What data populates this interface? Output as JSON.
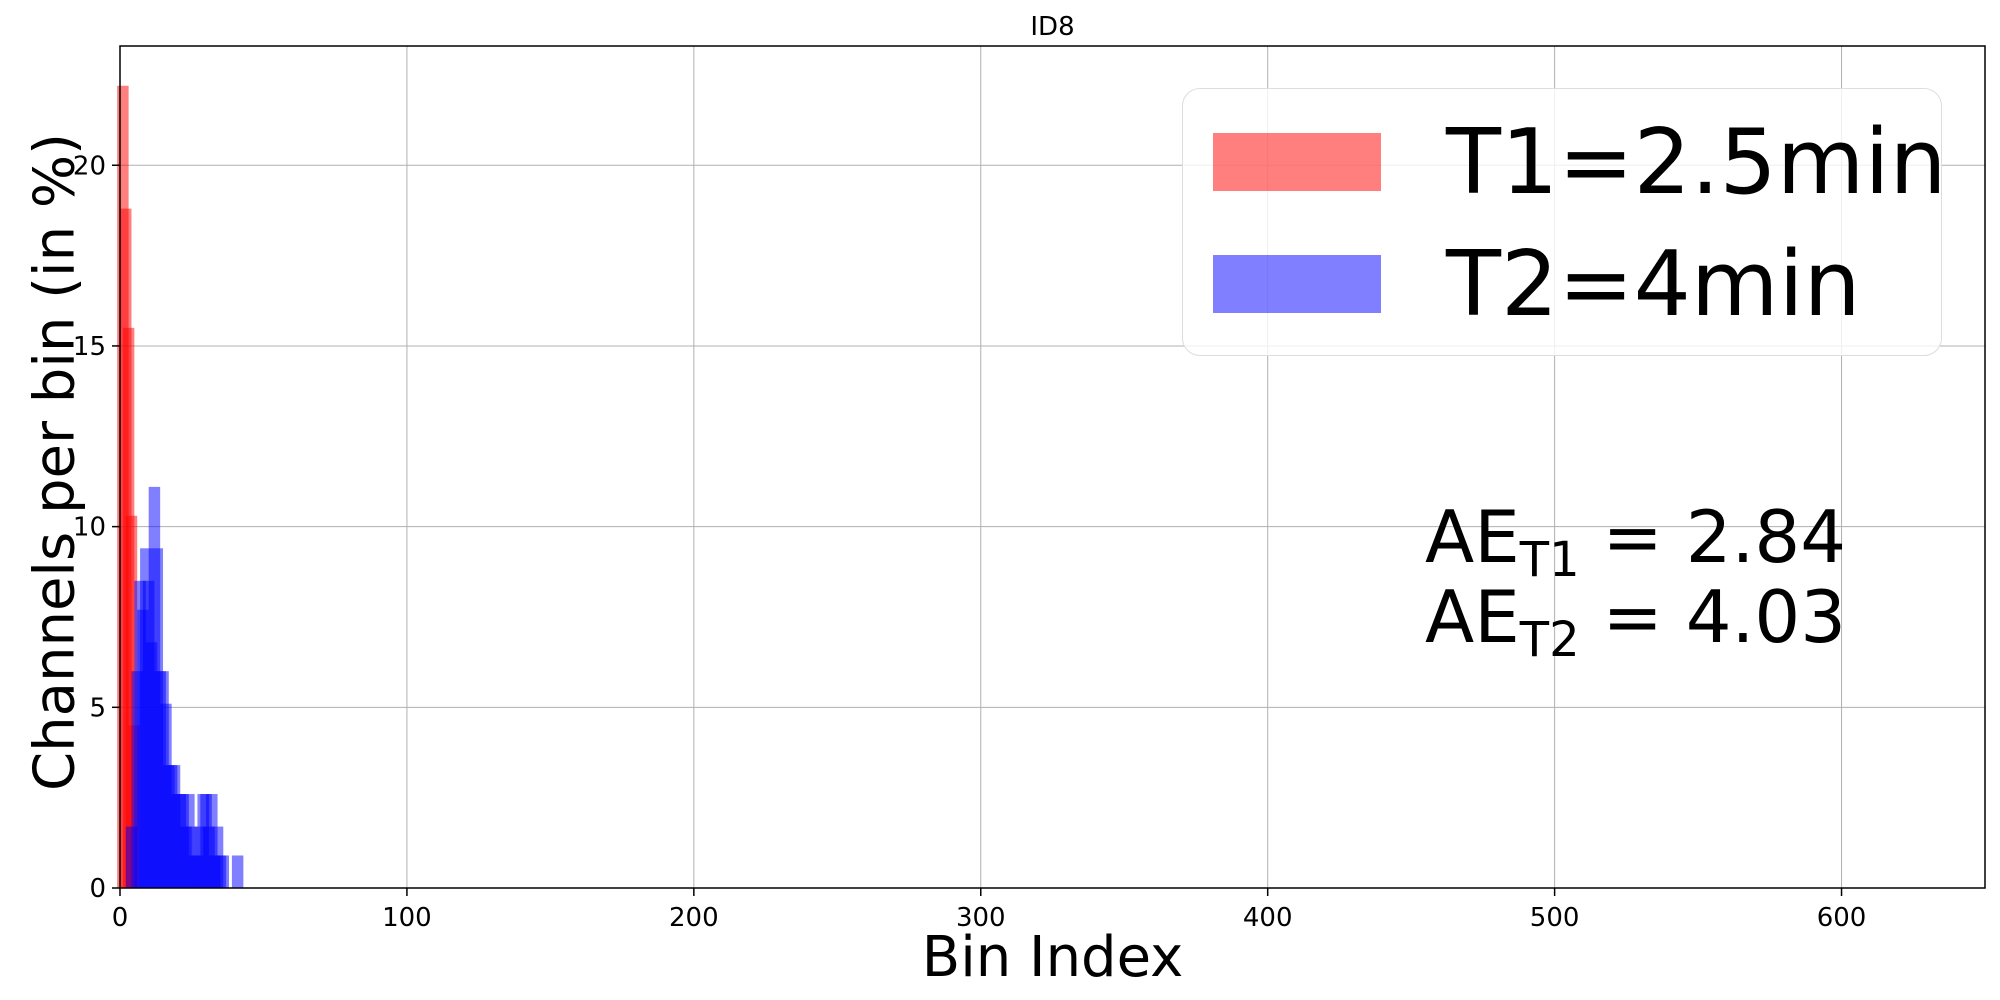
{
  "chart_data": {
    "type": "bar",
    "title": "ID8",
    "xlabel": "Bin Index",
    "ylabel": "Channels per bin (in %)",
    "xlim": [
      0,
      650
    ],
    "ylim": [
      0,
      23.3
    ],
    "xticks": [
      "0",
      "100",
      "200",
      "300",
      "400",
      "500",
      "600"
    ],
    "yticks": [
      "0",
      "5",
      "10",
      "15",
      "20"
    ],
    "grid": true,
    "legend_position": "top-right",
    "series": [
      {
        "name": "T1=2.5min",
        "color": "#ff0000",
        "x": [
          1,
          2,
          3,
          4,
          5
        ],
        "values": [
          22.2,
          18.8,
          15.5,
          10.3,
          4.5
        ]
      },
      {
        "name": "T2=4min",
        "color": "#0000ff",
        "x": [
          4,
          6,
          7,
          8,
          9,
          10,
          11,
          12,
          13,
          14,
          15,
          16,
          17,
          18,
          19,
          20,
          21,
          22,
          23,
          24,
          25,
          26,
          27,
          28,
          29,
          30,
          31,
          32,
          33,
          34,
          35,
          36,
          41
        ],
        "values": [
          1.7,
          6.0,
          8.5,
          7.7,
          9.4,
          8.5,
          6.8,
          11.1,
          9.4,
          6.0,
          6.0,
          5.1,
          3.4,
          3.4,
          3.4,
          2.6,
          2.6,
          2.6,
          1.7,
          2.6,
          1.7,
          0.9,
          0.9,
          1.7,
          2.6,
          2.6,
          1.7,
          2.6,
          0.9,
          1.7,
          0.9,
          0.9,
          0.9
        ]
      }
    ],
    "annotations": [
      {
        "prefix": "AE",
        "sub": "T1",
        "text": " = 2.84"
      },
      {
        "prefix": "AE",
        "sub": "T2",
        "text": " = 4.03"
      }
    ]
  }
}
